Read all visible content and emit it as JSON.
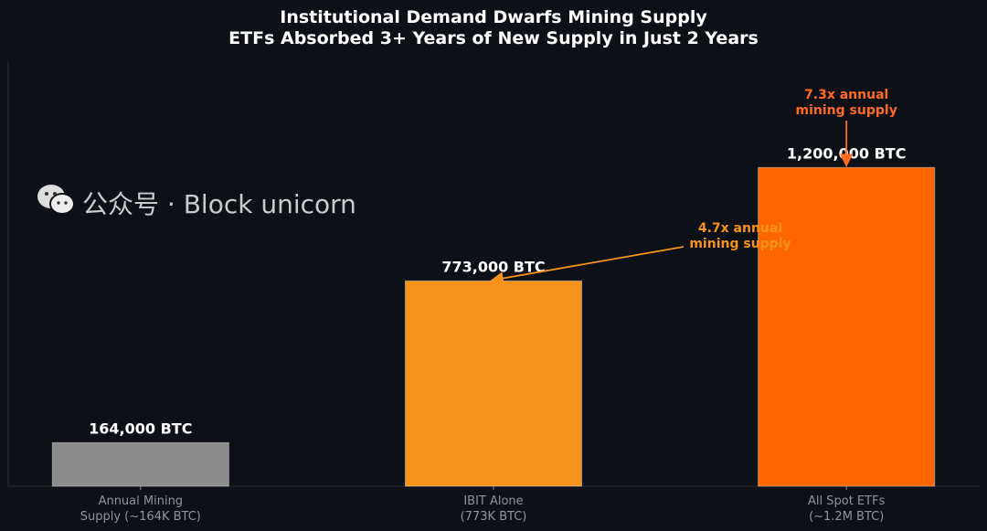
{
  "chart_data": {
    "type": "bar",
    "title": "Institutional Demand Dwarfs Mining Supply",
    "subtitle": "ETFs Absorbed 3+ Years of New Supply in Just 2 Years",
    "categories": [
      "Annual Mining\nSupply (~164K BTC)",
      "IBIT Alone\n(773K BTC)",
      "All Spot ETFs\n(~1.2M BTC)"
    ],
    "values": [
      164000,
      773000,
      1200000
    ],
    "value_labels": [
      "164,000 BTC",
      "773,000 BTC",
      "1,200,000 BTC"
    ],
    "colors": [
      "#8c8c8c",
      "#f7931a",
      "#ff6600"
    ],
    "ylim": [
      0,
      1600000
    ],
    "xlabel": "",
    "ylabel": "",
    "grid": false,
    "annotations": [
      {
        "text": "4.7x annual\nmining supply",
        "target_category": 1,
        "color": "#f7931a"
      },
      {
        "text": "7.3x annual\nmining supply",
        "target_category": 2,
        "color": "#ff6a1f"
      }
    ],
    "background": "#0d1017"
  },
  "watermark": {
    "text": "公众号 · Block unicorn",
    "icon": "wechat-icon"
  }
}
